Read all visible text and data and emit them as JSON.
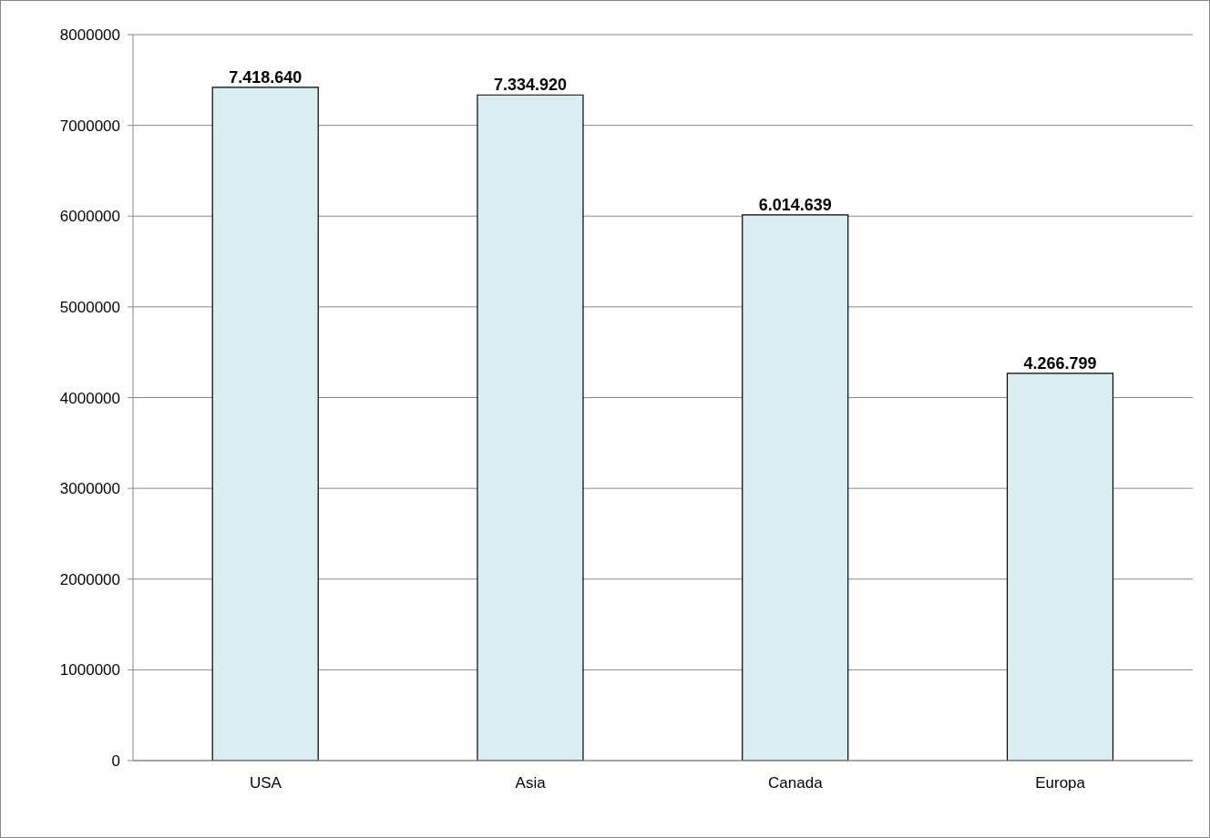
{
  "chart_data": {
    "type": "bar",
    "categories": [
      "USA",
      "Asia",
      "Canada",
      "Europa"
    ],
    "values": [
      7418640,
      7334920,
      6014639,
      4266799
    ],
    "value_labels": [
      "7.418.640",
      "7.334.920",
      "6.014.639",
      "4.266.799"
    ],
    "color": "#daeef3",
    "ylim": [
      0,
      8000000
    ],
    "yticks": [
      0,
      1000000,
      2000000,
      3000000,
      4000000,
      5000000,
      6000000,
      7000000,
      8000000
    ],
    "grid": "y"
  }
}
